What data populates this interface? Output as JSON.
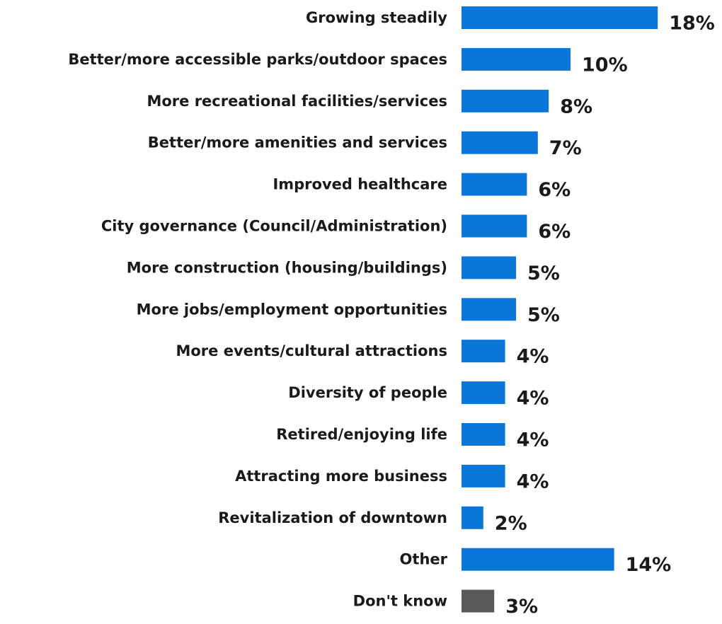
{
  "chart_data": {
    "type": "bar",
    "orientation": "horizontal",
    "title": "",
    "xlabel": "",
    "ylabel": "",
    "grid": false,
    "categories": [
      "Growing steadily",
      "Better/more accessible parks/outdoor spaces",
      "More recreational facilities/services",
      "Better/more amenities and services",
      "Improved healthcare",
      "City governance (Council/Administration)",
      "More construction (housing/buildings)",
      "More jobs/employment opportunities",
      "More events/cultural attractions",
      "Diversity of people",
      "Retired/enjoying life",
      "Attracting more business",
      "Revitalization of downtown",
      "Other",
      "Don't know"
    ],
    "values": [
      18,
      10,
      8,
      7,
      6,
      6,
      5,
      5,
      4,
      4,
      4,
      4,
      2,
      14,
      3
    ],
    "value_labels": [
      "18%",
      "10%",
      "8%",
      "7%",
      "6%",
      "6%",
      "5%",
      "5%",
      "4%",
      "4%",
      "4%",
      "4%",
      "2%",
      "14%",
      "3%"
    ],
    "unit": "%",
    "bar_colors": [
      "#0a77d8",
      "#0a77d8",
      "#0a77d8",
      "#0a77d8",
      "#0a77d8",
      "#0a77d8",
      "#0a77d8",
      "#0a77d8",
      "#0a77d8",
      "#0a77d8",
      "#0a77d8",
      "#0a77d8",
      "#0a77d8",
      "#0a77d8",
      "#58595b"
    ],
    "colors": {
      "primary": "#0a77d8",
      "dont_know": "#58595b",
      "text": "#1a1a1a"
    }
  }
}
